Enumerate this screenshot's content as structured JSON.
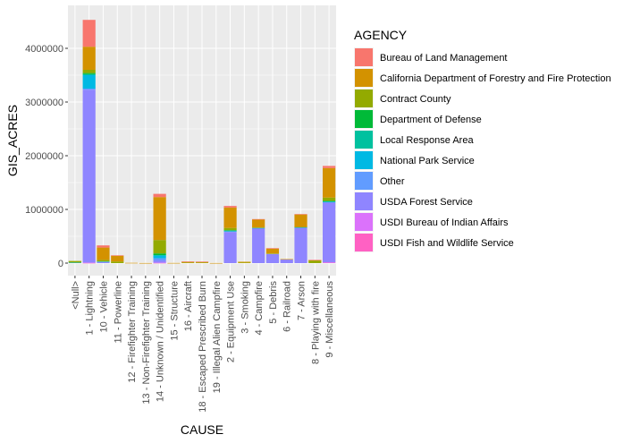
{
  "chart_data": {
    "type": "bar",
    "stacked": true,
    "xlabel": "CAUSE",
    "ylabel": "GIS_ACRES",
    "ylim": [
      0,
      4750000
    ],
    "yticks": [
      0,
      1000000,
      2000000,
      3000000,
      4000000
    ],
    "ytick_labels": [
      "0",
      "1000000",
      "2000000",
      "3000000",
      "4000000"
    ],
    "grid": true,
    "legend_position": "right",
    "legend_title": "AGENCY",
    "categories": [
      "<Null>",
      "1 - Lightning",
      "10 - Vehicle",
      "11 - Powerline",
      "12 - Firefighter Training",
      "13 - Non-Firefighter Training",
      "14 - Unknown / Unidentified",
      "15 - Structure",
      "16 - Aircraft",
      "18 - Escaped Prescribed Burn",
      "19 - Illegal Alien Campfire",
      "2 - Equipment Use",
      "3 - Smoking",
      "4 - Campfire",
      "5 - Debris",
      "6 - Railroad",
      "7 - Arson",
      "8 - Playing with fire",
      "9 - Miscellaneous"
    ],
    "series": [
      {
        "name": "Bureau of Land Management",
        "color": "#F8766D",
        "values": [
          0,
          500000,
          40000,
          5000,
          0,
          0,
          60000,
          0,
          5000,
          3000,
          0,
          30000,
          0,
          5000,
          10000,
          0,
          10000,
          5000,
          40000
        ]
      },
      {
        "name": "California Department of Forestry and Fire Protection",
        "color": "#D39200",
        "values": [
          0,
          430000,
          230000,
          110000,
          5000,
          2000,
          800000,
          3000,
          15000,
          15000,
          2000,
          380000,
          15000,
          150000,
          90000,
          5000,
          230000,
          5000,
          550000
        ]
      },
      {
        "name": "Contract County",
        "color": "#93AA00",
        "values": [
          30000,
          60000,
          30000,
          30000,
          0,
          0,
          250000,
          0,
          10000,
          10000,
          0,
          40000,
          10000,
          10000,
          10000,
          0,
          10000,
          50000,
          60000
        ]
      },
      {
        "name": "Department of Defense",
        "color": "#00BA38",
        "values": [
          0,
          20000,
          0,
          0,
          0,
          0,
          30000,
          0,
          0,
          0,
          0,
          10000,
          0,
          0,
          0,
          0,
          0,
          0,
          10000
        ]
      },
      {
        "name": "Local Response Area",
        "color": "#00C19F",
        "values": [
          0,
          20000,
          0,
          0,
          0,
          0,
          10000,
          0,
          0,
          0,
          0,
          5000,
          0,
          0,
          0,
          0,
          0,
          0,
          5000
        ]
      },
      {
        "name": "National Park Service",
        "color": "#00B9E3",
        "values": [
          10000,
          250000,
          10000,
          0,
          0,
          0,
          50000,
          0,
          0,
          0,
          0,
          10000,
          0,
          5000,
          0,
          0,
          5000,
          0,
          10000
        ]
      },
      {
        "name": "Other",
        "color": "#619CFF",
        "values": [
          0,
          20000,
          0,
          0,
          0,
          0,
          40000,
          0,
          0,
          0,
          0,
          10000,
          0,
          0,
          0,
          0,
          0,
          0,
          10000
        ]
      },
      {
        "name": "USDA Forest Service",
        "color": "#8F85FF",
        "values": [
          0,
          3220000,
          20000,
          0,
          0,
          0,
          40000,
          0,
          0,
          0,
          0,
          580000,
          0,
          650000,
          170000,
          70000,
          660000,
          0,
          1110000
        ]
      },
      {
        "name": "USDI Bureau of Indian Affairs",
        "color": "#DB72FB",
        "values": [
          0,
          5000,
          0,
          0,
          0,
          0,
          5000,
          0,
          0,
          0,
          0,
          0,
          0,
          0,
          0,
          0,
          0,
          0,
          5000
        ]
      },
      {
        "name": "USDI Fish and Wildlife Service",
        "color": "#FF61C3",
        "values": [
          0,
          5000,
          0,
          0,
          0,
          0,
          5000,
          0,
          0,
          0,
          0,
          0,
          0,
          0,
          0,
          0,
          0,
          0,
          10000
        ]
      }
    ]
  }
}
